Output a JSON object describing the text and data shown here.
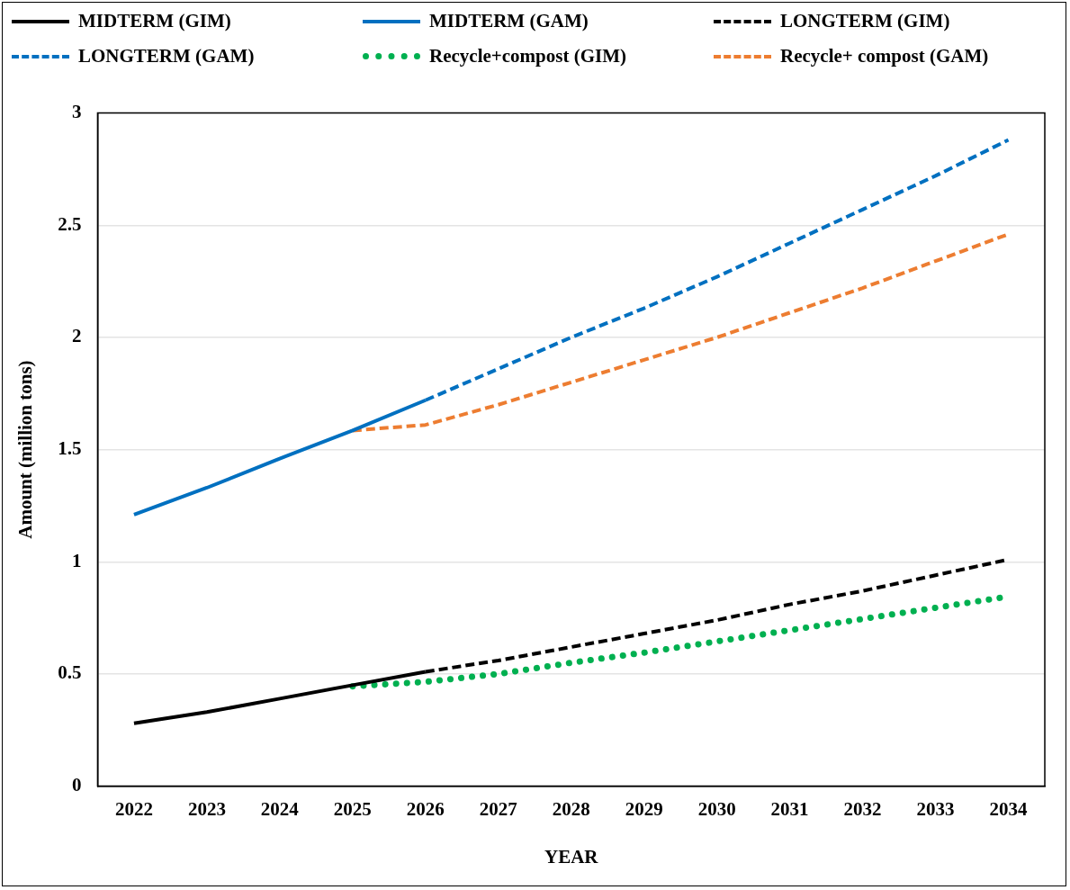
{
  "chart_data": {
    "type": "line",
    "xlabel": "YEAR",
    "ylabel": "Amount (million tons)",
    "categories": [
      "2022",
      "2023",
      "2024",
      "2025",
      "2026",
      "2027",
      "2028",
      "2029",
      "2030",
      "2031",
      "2032",
      "2033",
      "2034"
    ],
    "ylim": [
      0,
      3
    ],
    "yticks": [
      0,
      0.5,
      1,
      1.5,
      2,
      2.5,
      3
    ],
    "grid": "y",
    "legend": "top",
    "marker": "none",
    "series": [
      {
        "name": "MIDTERM (GIM)",
        "color": "#000000",
        "line_style": "solid",
        "values": [
          0.28,
          0.33,
          0.39,
          0.45,
          0.51,
          null,
          null,
          null,
          null,
          null,
          null,
          null,
          null
        ]
      },
      {
        "name": "MIDTERM (GAM)",
        "color": "#0070c0",
        "line_style": "solid",
        "values": [
          1.21,
          1.33,
          1.46,
          1.585,
          1.72,
          null,
          null,
          null,
          null,
          null,
          null,
          null,
          null
        ]
      },
      {
        "name": "LONGTERM (GIM)",
        "color": "#000000",
        "line_style": "dashed",
        "values": [
          null,
          null,
          null,
          null,
          0.51,
          0.56,
          0.62,
          0.68,
          0.74,
          0.81,
          0.87,
          0.94,
          1.01
        ]
      },
      {
        "name": "LONGTERM (GAM)",
        "color": "#0070c0",
        "line_style": "dashed",
        "values": [
          null,
          null,
          null,
          null,
          1.72,
          1.86,
          2.0,
          2.13,
          2.27,
          2.42,
          2.57,
          2.72,
          2.88
        ]
      },
      {
        "name": "Recycle+compost (GIM)",
        "color": "#00b050",
        "line_style": "dotted",
        "values": [
          null,
          null,
          null,
          0.445,
          0.465,
          0.5,
          0.55,
          0.595,
          0.645,
          0.695,
          0.745,
          0.795,
          0.845
        ]
      },
      {
        "name": "Recycle+ compost (GAM)",
        "color": "#ed7d31",
        "line_style": "dashed",
        "values": [
          null,
          null,
          null,
          1.585,
          1.61,
          1.7,
          1.8,
          1.9,
          2.0,
          2.11,
          2.22,
          2.34,
          2.46
        ]
      }
    ]
  }
}
